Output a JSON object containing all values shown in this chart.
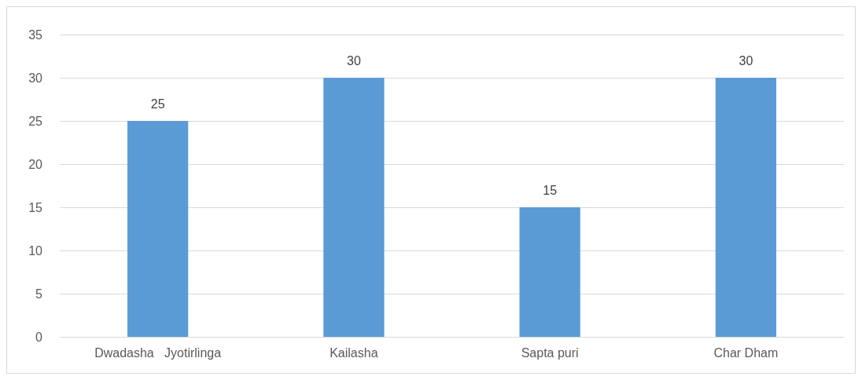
{
  "chart_data": {
    "type": "bar",
    "categories": [
      "Dwadasha   Jyotirlinga",
      "Kailasha",
      "Sapta puri",
      "Char Dham"
    ],
    "values": [
      25,
      30,
      15,
      30
    ],
    "color": "#5b9bd5",
    "ylim": [
      0,
      35
    ],
    "yticks": [
      0,
      5,
      10,
      15,
      20,
      25,
      30,
      35
    ],
    "grid": "y",
    "data_labels": true
  }
}
